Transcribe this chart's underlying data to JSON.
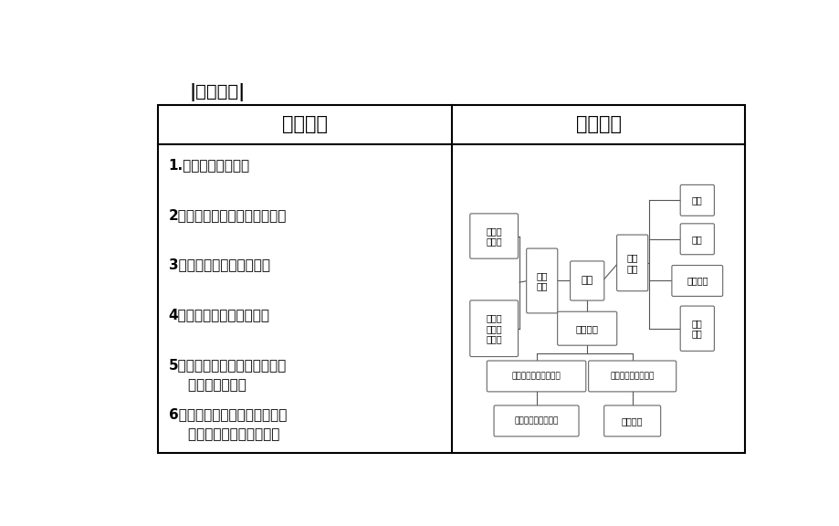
{
  "bg_color": "#ffffff",
  "title": "|备考导航|",
  "header_left": "考点展示",
  "header_right": "知识网络",
  "left_items": [
    "1.人口分布的特点。",
    "2．影响人口分布的主要因素。",
    "3．影响人口迁移的因素。",
    "4．人口迁移的时空特点。",
    "5．区域资源环境承载力的概念\n    及其影响因素。",
    "6．人口合理容量的概念以及保\n    持人口合理容量的措施。"
  ]
}
